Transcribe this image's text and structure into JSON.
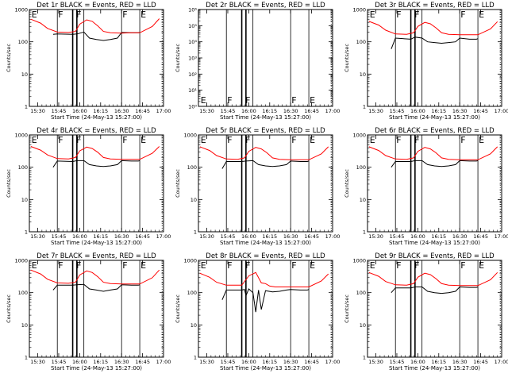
{
  "figure": {
    "colors": {
      "events": "#000000",
      "lld": "#ff0000",
      "background": "#ffffff"
    }
  },
  "chart_data": [
    {
      "type": "line",
      "title": "Det 1r BLACK = Events, RED = LLD",
      "xlabel": "Start Time (24-May-13 15:27:00)",
      "ylabel": "Counts/sec",
      "xticks": [
        "15:30",
        "15:45",
        "16:00",
        "16:15",
        "16:30",
        "16:45",
        "17:00"
      ],
      "xlim_minutes": [
        -3,
        93
      ],
      "ylim": [
        1,
        1000
      ],
      "yscale": "log",
      "yticks": [
        "1",
        "10",
        "100",
        "1000"
      ],
      "flags": [
        {
          "label": "E",
          "t": -2
        },
        {
          "label": "F",
          "t": 17
        },
        {
          "label": "F",
          "t": 30
        },
        {
          "label": "F",
          "t": 63
        },
        {
          "label": "E",
          "t": 76
        }
      ],
      "vlines_solid": [
        17,
        28,
        31,
        36,
        63,
        76
      ],
      "vlines_dotted": [
        92
      ],
      "series": [
        {
          "name": "BLACK = Events",
          "x": [
            14,
            17,
            28,
            31,
            36,
            40,
            45,
            50,
            55,
            60,
            63,
            70,
            75,
            76
          ],
          "y": [
            170,
            175,
            170,
            175,
            200,
            130,
            118,
            110,
            118,
            130,
            195,
            190,
            190,
            195
          ]
        },
        {
          "name": "RED = LLD",
          "x": [
            -2,
            5,
            10,
            17,
            25,
            30,
            33,
            38,
            42,
            46,
            50,
            55,
            63,
            70,
            76,
            85,
            90
          ],
          "y": [
            500,
            380,
            260,
            200,
            195,
            210,
            350,
            480,
            430,
            310,
            210,
            190,
            185,
            190,
            190,
            300,
            520
          ]
        }
      ]
    },
    {
      "type": "line",
      "title": "Det 2r BLACK = Events, RED = LLD",
      "xlabel": "Start Time (24-May-13 15:27:00)",
      "ylabel": "Counts/sec",
      "xticks": [
        "15:30",
        "15:45",
        "16:00",
        "16:15",
        "16:30",
        "16:45",
        "17:00"
      ],
      "xlim_minutes": [
        -3,
        93
      ],
      "ylim": [
        1,
        1000000
      ],
      "yscale": "log",
      "yticks": [
        "10⁰",
        "10¹",
        "10²",
        "10³",
        "10⁴",
        "10⁵",
        "10⁶"
      ],
      "flags": [
        {
          "label": "E",
          "t": -2
        },
        {
          "label": "F",
          "t": 17
        },
        {
          "label": "F",
          "t": 30
        },
        {
          "label": "F",
          "t": 63
        },
        {
          "label": "E",
          "t": 76
        }
      ],
      "vlines_solid": [
        17,
        28,
        31,
        36,
        63,
        76
      ],
      "vlines_dotted": [
        92
      ],
      "series": []
    },
    {
      "type": "line",
      "title": "Det 3r BLACK = Events, RED = LLD",
      "xlabel": "Start Time (24-May-13 15:27:00)",
      "ylabel": "Counts/sec",
      "xticks": [
        "15:30",
        "15:45",
        "16:00",
        "16:15",
        "16:30",
        "16:45",
        "17:00"
      ],
      "xlim_minutes": [
        -3,
        93
      ],
      "ylim": [
        1,
        1000
      ],
      "yscale": "log",
      "yticks": [
        "1",
        "10",
        "100",
        "1000"
      ],
      "flags": [
        {
          "label": "E",
          "t": -2
        },
        {
          "label": "F",
          "t": 17
        },
        {
          "label": "F",
          "t": 30
        },
        {
          "label": "F",
          "t": 63
        },
        {
          "label": "E",
          "t": 76
        }
      ],
      "vlines_solid": [
        17,
        28,
        31,
        36,
        63,
        76
      ],
      "vlines_dotted": [
        92
      ],
      "series": [
        {
          "name": "BLACK = Events",
          "x": [
            14,
            17,
            28,
            31,
            36,
            40,
            45,
            50,
            55,
            60,
            63,
            70,
            75,
            76
          ],
          "y": [
            60,
            130,
            120,
            140,
            130,
            100,
            95,
            90,
            95,
            100,
            130,
            120,
            120,
            125
          ]
        },
        {
          "name": "RED = LLD",
          "x": [
            -2,
            5,
            10,
            17,
            25,
            30,
            33,
            38,
            42,
            46,
            50,
            55,
            63,
            70,
            76,
            85,
            90
          ],
          "y": [
            430,
            330,
            230,
            175,
            170,
            190,
            300,
            400,
            360,
            270,
            190,
            170,
            165,
            165,
            165,
            250,
            420
          ]
        }
      ]
    },
    {
      "type": "line",
      "title": "Det 4r BLACK = Events, RED = LLD",
      "xlabel": "Start Time (24-May-13 15:27:00)",
      "ylabel": "Counts/sec",
      "xticks": [
        "15:30",
        "15:45",
        "16:00",
        "16:15",
        "16:30",
        "16:45",
        "17:00"
      ],
      "xlim_minutes": [
        -3,
        93
      ],
      "ylim": [
        1,
        1000
      ],
      "yscale": "log",
      "yticks": [
        "1",
        "10",
        "100",
        "1000"
      ],
      "flags": [
        {
          "label": "E",
          "t": -2
        },
        {
          "label": "F",
          "t": 17
        },
        {
          "label": "F",
          "t": 30
        },
        {
          "label": "F",
          "t": 63
        },
        {
          "label": "E",
          "t": 76
        }
      ],
      "vlines_solid": [
        17,
        28,
        31,
        36,
        63,
        76
      ],
      "vlines_dotted": [
        92
      ],
      "series": [
        {
          "name": "BLACK = Events",
          "x": [
            14,
            17,
            28,
            31,
            36,
            40,
            45,
            50,
            55,
            60,
            63,
            70,
            75,
            76
          ],
          "y": [
            100,
            155,
            150,
            160,
            160,
            120,
            110,
            105,
            110,
            120,
            160,
            155,
            155,
            160
          ]
        },
        {
          "name": "RED = LLD",
          "x": [
            -2,
            5,
            10,
            17,
            25,
            30,
            33,
            38,
            42,
            46,
            50,
            55,
            63,
            70,
            76,
            85,
            90
          ],
          "y": [
            440,
            340,
            240,
            185,
            180,
            200,
            320,
            420,
            380,
            290,
            200,
            180,
            175,
            175,
            175,
            270,
            440
          ]
        }
      ]
    },
    {
      "type": "line",
      "title": "Det 5r BLACK = Events, RED = LLD",
      "xlabel": "Start Time (24-May-13 15:27:00)",
      "ylabel": "Counts/sec",
      "xticks": [
        "15:30",
        "15:45",
        "16:00",
        "16:15",
        "16:30",
        "16:45",
        "17:00"
      ],
      "xlim_minutes": [
        -3,
        93
      ],
      "ylim": [
        1,
        1000
      ],
      "yscale": "log",
      "yticks": [
        "1",
        "10",
        "100",
        "1000"
      ],
      "flags": [
        {
          "label": "E",
          "t": -2
        },
        {
          "label": "F",
          "t": 17
        },
        {
          "label": "F",
          "t": 30
        },
        {
          "label": "F",
          "t": 63
        },
        {
          "label": "E",
          "t": 76
        }
      ],
      "vlines_solid": [
        17,
        28,
        31,
        36,
        63,
        76
      ],
      "vlines_dotted": [
        92
      ],
      "series": [
        {
          "name": "BLACK = Events",
          "x": [
            14,
            17,
            28,
            31,
            36,
            40,
            45,
            50,
            55,
            60,
            63,
            70,
            75,
            76
          ],
          "y": [
            90,
            150,
            150,
            155,
            160,
            120,
            110,
            105,
            110,
            120,
            155,
            150,
            150,
            155
          ]
        },
        {
          "name": "RED = LLD",
          "x": [
            -2,
            5,
            10,
            17,
            25,
            30,
            33,
            38,
            42,
            46,
            50,
            55,
            63,
            70,
            76,
            85,
            90
          ],
          "y": [
            430,
            330,
            230,
            180,
            175,
            195,
            310,
            410,
            370,
            280,
            195,
            175,
            170,
            170,
            170,
            260,
            430
          ]
        }
      ]
    },
    {
      "type": "line",
      "title": "Det 6r BLACK = Events, RED = LLD",
      "xlabel": "Start Time (24-May-13 15:27:00)",
      "ylabel": "Counts/sec",
      "xticks": [
        "15:30",
        "15:45",
        "16:00",
        "16:15",
        "16:30",
        "16:45",
        "17:00"
      ],
      "xlim_minutes": [
        -3,
        93
      ],
      "ylim": [
        1,
        1000
      ],
      "yscale": "log",
      "yticks": [
        "1",
        "10",
        "100",
        "1000"
      ],
      "flags": [
        {
          "label": "E",
          "t": -2
        },
        {
          "label": "F",
          "t": 17
        },
        {
          "label": "F",
          "t": 30
        },
        {
          "label": "F",
          "t": 63
        },
        {
          "label": "E",
          "t": 76
        }
      ],
      "vlines_solid": [
        17,
        28,
        31,
        36,
        63,
        76
      ],
      "vlines_dotted": [
        92
      ],
      "series": [
        {
          "name": "BLACK = Events",
          "x": [
            14,
            17,
            28,
            31,
            36,
            40,
            45,
            50,
            55,
            60,
            63,
            70,
            75,
            76
          ],
          "y": [
            100,
            150,
            150,
            160,
            160,
            120,
            110,
            105,
            110,
            120,
            160,
            155,
            155,
            160
          ]
        },
        {
          "name": "RED = LLD",
          "x": [
            -2,
            5,
            10,
            17,
            25,
            30,
            33,
            38,
            42,
            46,
            50,
            55,
            63,
            70,
            76,
            85,
            90
          ],
          "y": [
            430,
            330,
            230,
            180,
            175,
            195,
            310,
            410,
            370,
            280,
            195,
            175,
            170,
            170,
            170,
            260,
            430
          ]
        }
      ]
    },
    {
      "type": "line",
      "title": "Det 7r BLACK = Events, RED = LLD",
      "xlabel": "Start Time (24-May-13 15:27:00)",
      "ylabel": "Counts/sec",
      "xticks": [
        "15:30",
        "15:45",
        "16:00",
        "16:15",
        "16:30",
        "16:45",
        "17:00"
      ],
      "xlim_minutes": [
        -3,
        93
      ],
      "ylim": [
        1,
        1000
      ],
      "yscale": "log",
      "yticks": [
        "1",
        "10",
        "100",
        "1000"
      ],
      "flags": [
        {
          "label": "E",
          "t": -2
        },
        {
          "label": "F",
          "t": 17
        },
        {
          "label": "F",
          "t": 30
        },
        {
          "label": "F",
          "t": 63
        },
        {
          "label": "E",
          "t": 76
        }
      ],
      "vlines_solid": [
        17,
        28,
        31,
        36,
        63,
        76
      ],
      "vlines_dotted": [
        92
      ],
      "series": [
        {
          "name": "BLACK = Events",
          "x": [
            14,
            17,
            28,
            31,
            36,
            40,
            45,
            50,
            55,
            60,
            63,
            70,
            75,
            76
          ],
          "y": [
            120,
            170,
            170,
            175,
            180,
            130,
            120,
            110,
            120,
            130,
            175,
            170,
            170,
            175
          ]
        },
        {
          "name": "RED = LLD",
          "x": [
            -2,
            5,
            10,
            17,
            25,
            30,
            33,
            38,
            42,
            46,
            50,
            55,
            63,
            70,
            76,
            85,
            90
          ],
          "y": [
            500,
            380,
            260,
            200,
            195,
            210,
            350,
            470,
            420,
            310,
            210,
            190,
            185,
            185,
            185,
            290,
            500
          ]
        }
      ]
    },
    {
      "type": "line",
      "title": "Det 8r BLACK = Events, RED = LLD",
      "xlabel": "Start Time (24-May-13 15:27:00)",
      "ylabel": "Counts/sec",
      "xticks": [
        "15:30",
        "15:45",
        "16:00",
        "16:15",
        "16:30",
        "16:45",
        "17:00"
      ],
      "xlim_minutes": [
        -3,
        93
      ],
      "ylim": [
        1,
        1000
      ],
      "yscale": "log",
      "yticks": [
        "1",
        "10",
        "100",
        "1000"
      ],
      "flags": [
        {
          "label": "E",
          "t": -2
        },
        {
          "label": "F",
          "t": 17
        },
        {
          "label": "F",
          "t": 30
        },
        {
          "label": "F",
          "t": 63
        },
        {
          "label": "E",
          "t": 76
        }
      ],
      "vlines_solid": [
        17,
        28,
        31,
        36,
        63,
        76
      ],
      "vlines_dotted": [
        92
      ],
      "series": [
        {
          "name": "BLACK = Events",
          "x": [
            14,
            17,
            28,
            30,
            31,
            33,
            36,
            38,
            40,
            42,
            45,
            50,
            55,
            60,
            63,
            70,
            75,
            76
          ],
          "y": [
            60,
            120,
            120,
            125,
            80,
            130,
            100,
            25,
            120,
            30,
            115,
            105,
            110,
            120,
            125,
            120,
            120,
            125
          ]
        },
        {
          "name": "RED = LLD",
          "x": [
            -2,
            5,
            10,
            17,
            25,
            28,
            33,
            38,
            42,
            45,
            48,
            52,
            63,
            70,
            76,
            85,
            90
          ],
          "y": [
            400,
            300,
            210,
            170,
            170,
            170,
            330,
            420,
            200,
            190,
            160,
            150,
            150,
            150,
            150,
            230,
            380
          ]
        }
      ]
    },
    {
      "type": "line",
      "title": "Det 9r BLACK = Events, RED = LLD",
      "xlabel": "Start Time (24-May-13 15:27:00)",
      "ylabel": "Counts/sec",
      "xticks": [
        "15:30",
        "15:45",
        "16:00",
        "16:15",
        "16:30",
        "16:45",
        "17:00"
      ],
      "xlim_minutes": [
        -3,
        93
      ],
      "ylim": [
        1,
        1000
      ],
      "yscale": "log",
      "yticks": [
        "1",
        "10",
        "100",
        "1000"
      ],
      "flags": [
        {
          "label": "E",
          "t": -2
        },
        {
          "label": "F",
          "t": 17
        },
        {
          "label": "F",
          "t": 30
        },
        {
          "label": "F",
          "t": 63
        },
        {
          "label": "E",
          "t": 76
        }
      ],
      "vlines_solid": [
        17,
        28,
        31,
        36,
        63,
        76
      ],
      "vlines_dotted": [
        92
      ],
      "series": [
        {
          "name": "BLACK = Events",
          "x": [
            14,
            17,
            28,
            31,
            36,
            40,
            45,
            50,
            55,
            60,
            63,
            70,
            75,
            76
          ],
          "y": [
            100,
            140,
            140,
            150,
            150,
            110,
            100,
            95,
            100,
            110,
            150,
            145,
            145,
            150
          ]
        },
        {
          "name": "RED = LLD",
          "x": [
            -2,
            5,
            10,
            17,
            25,
            30,
            33,
            38,
            42,
            46,
            50,
            55,
            63,
            70,
            76,
            85,
            90
          ],
          "y": [
            420,
            320,
            220,
            175,
            170,
            190,
            300,
            400,
            360,
            270,
            190,
            170,
            165,
            165,
            165,
            250,
            420
          ]
        }
      ]
    }
  ]
}
